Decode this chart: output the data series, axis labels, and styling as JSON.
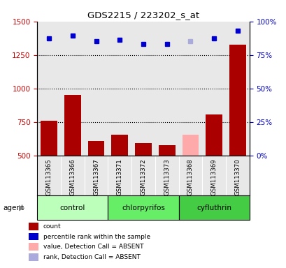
{
  "title": "GDS2215 / 223202_s_at",
  "samples": [
    "GSM113365",
    "GSM113366",
    "GSM113367",
    "GSM113371",
    "GSM113372",
    "GSM113373",
    "GSM113368",
    "GSM113369",
    "GSM113370"
  ],
  "bar_values": [
    760,
    950,
    610,
    655,
    590,
    575,
    655,
    805,
    1325
  ],
  "bar_colors": [
    "#aa0000",
    "#aa0000",
    "#aa0000",
    "#aa0000",
    "#aa0000",
    "#aa0000",
    "#ffaaaa",
    "#aa0000",
    "#aa0000"
  ],
  "rank_values": [
    87.5,
    89.5,
    85.5,
    86.5,
    83.0,
    83.0,
    85.5,
    87.5,
    93.0
  ],
  "rank_colors": [
    "#0000cc",
    "#0000cc",
    "#0000cc",
    "#0000cc",
    "#0000cc",
    "#0000cc",
    "#aaaadd",
    "#0000cc",
    "#0000cc"
  ],
  "groups": [
    {
      "label": "control",
      "start": 0,
      "end": 3,
      "color": "#bbffbb"
    },
    {
      "label": "chlorpyrifos",
      "start": 3,
      "end": 6,
      "color": "#66ee66"
    },
    {
      "label": "cyfluthrin",
      "start": 6,
      "end": 9,
      "color": "#44cc44"
    }
  ],
  "ylim_left": [
    500,
    1500
  ],
  "ylim_right": [
    0,
    100
  ],
  "yticks_left": [
    500,
    750,
    1000,
    1250,
    1500
  ],
  "yticks_right": [
    0,
    25,
    50,
    75,
    100
  ],
  "ytick_labels_right": [
    "0%",
    "25%",
    "50%",
    "75%",
    "100%"
  ],
  "ylabel_left_color": "#cc0000",
  "ylabel_right_color": "#0000cc",
  "gridlines": [
    750,
    1000,
    1250
  ],
  "background_color": "#ffffff",
  "plot_bg_color": "#e8e8e8",
  "legend_items": [
    {
      "color": "#aa0000",
      "label": "count"
    },
    {
      "color": "#0000cc",
      "label": "percentile rank within the sample"
    },
    {
      "color": "#ffaaaa",
      "label": "value, Detection Call = ABSENT"
    },
    {
      "color": "#aaaadd",
      "label": "rank, Detection Call = ABSENT"
    }
  ]
}
